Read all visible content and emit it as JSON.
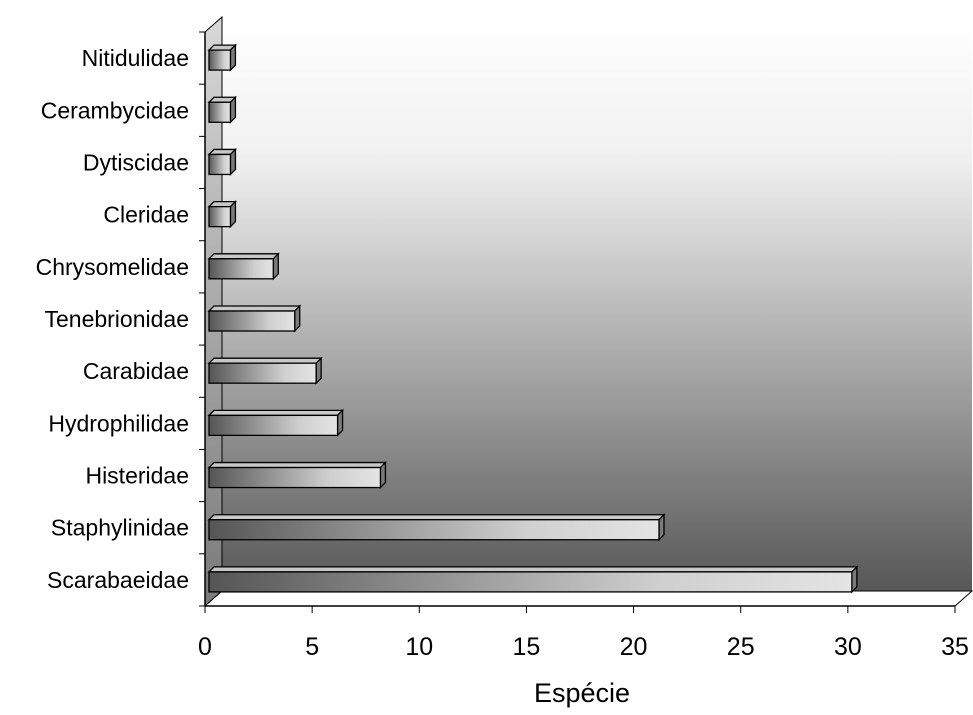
{
  "chart_data": {
    "type": "bar",
    "orientation": "horizontal",
    "style": "3d-gradient",
    "categories": [
      "Scarabaeidae",
      "Staphylinidae",
      "Histeridae",
      "Hydrophilidae",
      "Carabidae",
      "Tenebrionidae",
      "Chrysomelidae",
      "Cleridae",
      "Dytiscidae",
      "Cerambycidae",
      "Nitidulidae"
    ],
    "values": [
      30,
      21,
      8,
      6,
      5,
      4,
      3,
      1,
      1,
      1,
      1
    ],
    "xlabel": "Espécie",
    "ylabel": "",
    "xlim": [
      0,
      35
    ],
    "xticks": [
      "0",
      "5",
      "10",
      "15",
      "20",
      "25",
      "30",
      "35"
    ],
    "grid": false,
    "legend": "none",
    "colors": {
      "wall_dark": "#575757",
      "wall_light": "#ffffff",
      "bar_dark": "#555555",
      "bar_light": "#e4e4e4",
      "bar_outline": "#000000"
    }
  }
}
